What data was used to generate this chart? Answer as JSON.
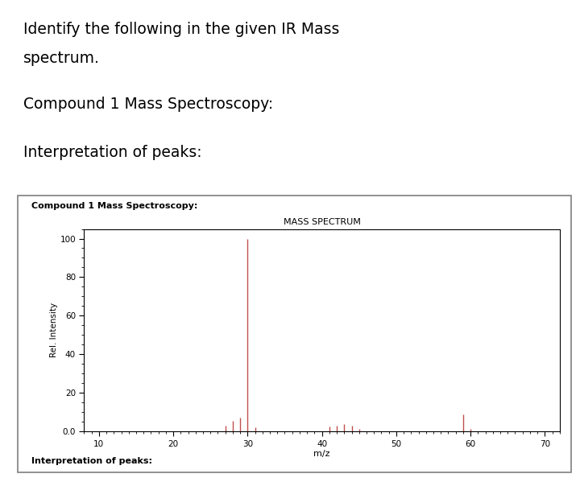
{
  "title_main_line1": "Identify the following in the given IR Mass",
  "title_main_line2": "spectrum.",
  "title_compound": "Compound 1 Mass Spectroscopy:",
  "title_interp": "Interpretation of peaks:",
  "box_label_compound": "Compound 1 Mass Spectroscopy:",
  "box_label_interp": "Interpretation of peaks:",
  "chart_title": "MASS SPECTRUM",
  "xlabel": "m/z",
  "ylabel": "Rel. Intensity",
  "xlim": [
    8,
    72
  ],
  "ylim": [
    0,
    105
  ],
  "yticks": [
    0.0,
    20,
    40,
    60,
    80,
    100
  ],
  "xticks": [
    10,
    20,
    30,
    40,
    50,
    60,
    70
  ],
  "peaks": [
    {
      "mz": 27,
      "intensity": 3.0
    },
    {
      "mz": 28,
      "intensity": 5.5
    },
    {
      "mz": 29,
      "intensity": 7.0
    },
    {
      "mz": 30,
      "intensity": 100.0
    },
    {
      "mz": 31,
      "intensity": 2.0
    },
    {
      "mz": 41,
      "intensity": 2.5
    },
    {
      "mz": 42,
      "intensity": 3.0
    },
    {
      "mz": 43,
      "intensity": 4.0
    },
    {
      "mz": 44,
      "intensity": 3.0
    },
    {
      "mz": 45,
      "intensity": 1.5
    },
    {
      "mz": 59,
      "intensity": 9.0
    },
    {
      "mz": 60,
      "intensity": 1.5
    }
  ],
  "peak_color": "#c0504d",
  "background_color": "#ffffff",
  "chart_bg": "#ffffff",
  "box_border_color": "#7f7f7f",
  "text_color": "#000000"
}
